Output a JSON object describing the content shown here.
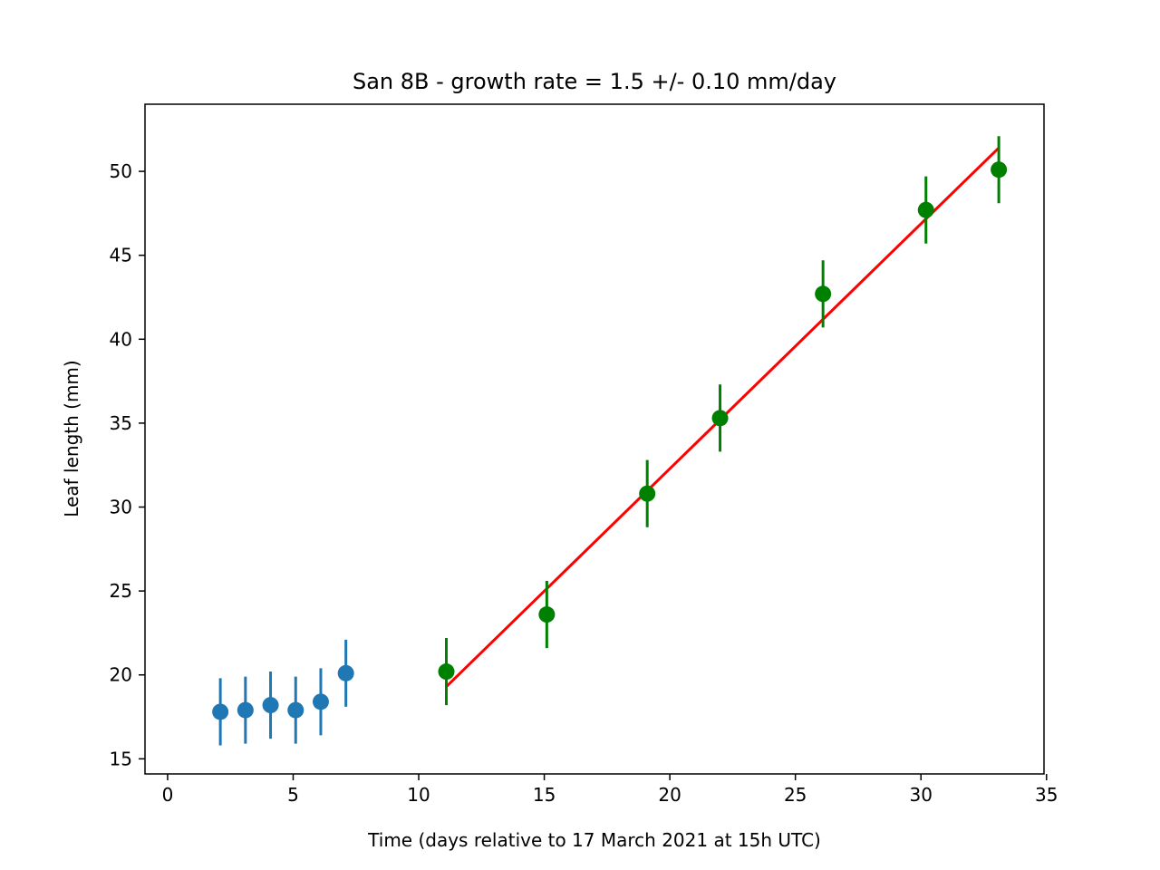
{
  "chart_data": {
    "type": "scatter",
    "title": "San 8B  -  growth rate =  1.5 +/- 0.10 mm/day",
    "xlabel": "Time (days relative to 17 March 2021 at 15h UTC)",
    "ylabel": "Leaf length (mm)",
    "xlim": [
      -0.9,
      34.9
    ],
    "ylim": [
      14.1,
      54.0
    ],
    "xticks": [
      0,
      5,
      10,
      15,
      20,
      25,
      30,
      35
    ],
    "yticks": [
      15,
      20,
      25,
      30,
      35,
      40,
      45,
      50
    ],
    "grid": false,
    "series": [
      {
        "color": "#1f77b4",
        "x": [
          2.1,
          3.1,
          4.1,
          5.1,
          6.1,
          7.1
        ],
        "y": [
          17.8,
          17.9,
          18.2,
          17.9,
          18.4,
          20.1
        ],
        "yerr": [
          2.0,
          2.0,
          2.0,
          2.0,
          2.0,
          2.0
        ]
      },
      {
        "color": "#008000",
        "x": [
          11.1,
          15.1,
          19.1,
          22.0,
          26.1,
          30.2,
          33.1
        ],
        "y": [
          20.2,
          23.6,
          30.8,
          35.3,
          42.7,
          47.7,
          50.1
        ],
        "yerr": [
          2.0,
          2.0,
          2.0,
          2.0,
          2.0,
          2.0,
          2.0
        ]
      }
    ],
    "fit_line": {
      "color": "#ff0000",
      "x": [
        11.1,
        33.1
      ],
      "y": [
        19.3,
        51.4
      ]
    }
  }
}
